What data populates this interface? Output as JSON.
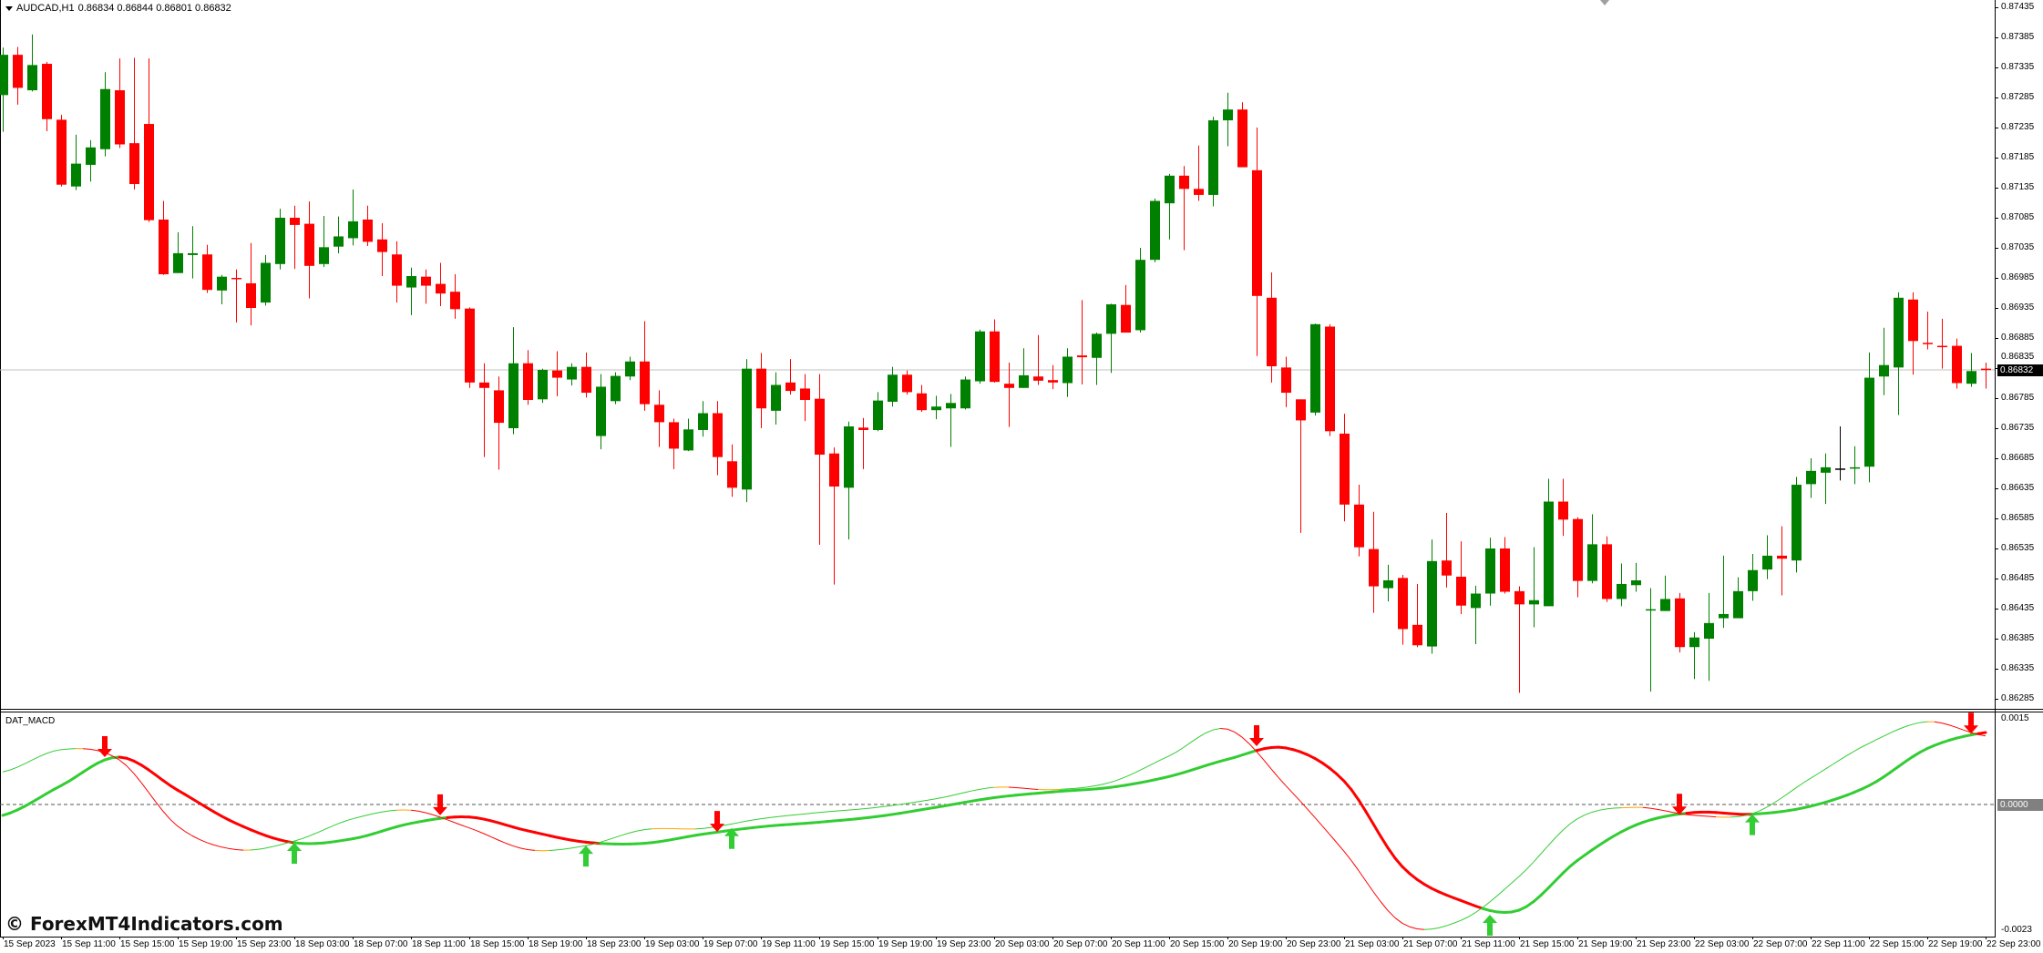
{
  "header": {
    "symbol": "AUDCAD,H1",
    "ohlc": "0.86834 0.86844 0.86801 0.86832"
  },
  "indicator": {
    "name": "DAT_MACD"
  },
  "watermark": "© ForexMT4Indicators.com",
  "colors": {
    "bull": "#008000",
    "bear": "#ff0000",
    "doji": "#000000",
    "macd_up": "#32cd32",
    "macd_down": "#ff0000",
    "macd_flat": "#ffa500",
    "arrow_up": "#32cd32",
    "arrow_down": "#ff0000",
    "price_line": "#c0c0c0"
  },
  "price_axis": {
    "labels": [
      "0.87435",
      "0.87385",
      "0.87335",
      "0.87285",
      "0.87235",
      "0.87185",
      "0.87135",
      "0.87085",
      "0.87035",
      "0.86985",
      "0.86935",
      "0.86885",
      "0.86835",
      "0.86785",
      "0.86735",
      "0.86685",
      "0.86635",
      "0.86585",
      "0.86535",
      "0.86485",
      "0.86435",
      "0.86385",
      "0.86335",
      "0.86285"
    ],
    "current": "0.86832"
  },
  "macd_axis": {
    "top": "0.0015",
    "zero": "0.0000",
    "bottom": "-0.0023"
  },
  "time_axis": [
    "15 Sep 2023",
    "15 Sep 11:00",
    "15 Sep 15:00",
    "15 Sep 19:00",
    "15 Sep 23:00",
    "18 Sep 03:00",
    "18 Sep 07:00",
    "18 Sep 11:00",
    "18 Sep 15:00",
    "18 Sep 19:00",
    "18 Sep 23:00",
    "19 Sep 03:00",
    "19 Sep 07:00",
    "19 Sep 11:00",
    "19 Sep 15:00",
    "19 Sep 19:00",
    "19 Sep 23:00",
    "20 Sep 03:00",
    "20 Sep 07:00",
    "20 Sep 11:00",
    "20 Sep 15:00",
    "20 Sep 19:00",
    "20 Sep 23:00",
    "21 Sep 03:00",
    "21 Sep 07:00",
    "21 Sep 11:00",
    "21 Sep 15:00",
    "21 Sep 19:00",
    "21 Sep 23:00",
    "22 Sep 03:00",
    "22 Sep 07:00",
    "22 Sep 11:00",
    "22 Sep 15:00",
    "22 Sep 19:00",
    "22 Sep 23:00"
  ],
  "chart_data": [
    {
      "type": "candlestick",
      "symbol": "AUDCAD",
      "timeframe": "H1",
      "ylim": [
        0.86285,
        0.87435
      ],
      "ohlc_order": [
        "open",
        "high",
        "low",
        "close"
      ],
      "candles": [
        [
          0.87289,
          0.87368,
          0.87228,
          0.87356
        ],
        [
          0.87356,
          0.87369,
          0.87273,
          0.87301
        ],
        [
          0.87297,
          0.8739,
          0.87295,
          0.87339
        ],
        [
          0.87341,
          0.87344,
          0.87229,
          0.87249
        ],
        [
          0.87248,
          0.87256,
          0.87137,
          0.8714
        ],
        [
          0.87137,
          0.87223,
          0.87131,
          0.87175
        ],
        [
          0.87173,
          0.87214,
          0.87145,
          0.87202
        ],
        [
          0.87199,
          0.87327,
          0.87187,
          0.87299
        ],
        [
          0.87297,
          0.8735,
          0.87201,
          0.87207
        ],
        [
          0.87209,
          0.87351,
          0.87132,
          0.87141
        ],
        [
          0.87241,
          0.8735,
          0.87078,
          0.87081
        ],
        [
          0.87082,
          0.87113,
          0.8699,
          0.86991
        ],
        [
          0.86993,
          0.87061,
          0.86993,
          0.87026
        ],
        [
          0.87023,
          0.87071,
          0.86984,
          0.87026
        ],
        [
          0.87024,
          0.8704,
          0.8696,
          0.86965
        ],
        [
          0.86964,
          0.8699,
          0.86941,
          0.86987
        ],
        [
          0.86985,
          0.86999,
          0.86911,
          0.86984
        ],
        [
          0.86976,
          0.87043,
          0.86906,
          0.86935
        ],
        [
          0.86944,
          0.87023,
          0.86939,
          0.8701
        ],
        [
          0.87008,
          0.871,
          0.86999,
          0.87085
        ],
        [
          0.87085,
          0.87105,
          0.87,
          0.87073
        ],
        [
          0.87075,
          0.87112,
          0.86951,
          0.87005
        ],
        [
          0.87008,
          0.87088,
          0.87003,
          0.87036
        ],
        [
          0.87037,
          0.87087,
          0.87026,
          0.87054
        ],
        [
          0.87051,
          0.87132,
          0.87039,
          0.87079
        ],
        [
          0.87082,
          0.87105,
          0.87038,
          0.87045
        ],
        [
          0.87049,
          0.87076,
          0.86988,
          0.87028
        ],
        [
          0.87024,
          0.87046,
          0.86944,
          0.86972
        ],
        [
          0.86969,
          0.87002,
          0.86923,
          0.86988
        ],
        [
          0.86987,
          0.86999,
          0.86942,
          0.86972
        ],
        [
          0.86975,
          0.8701,
          0.86938,
          0.86959
        ],
        [
          0.86962,
          0.86991,
          0.86917,
          0.86933
        ],
        [
          0.86934,
          0.86936,
          0.86802,
          0.86811
        ],
        [
          0.86811,
          0.86843,
          0.86687,
          0.86802
        ],
        [
          0.86798,
          0.86821,
          0.86666,
          0.86744
        ],
        [
          0.86735,
          0.86903,
          0.86725,
          0.86843
        ],
        [
          0.86843,
          0.86865,
          0.86774,
          0.86782
        ],
        [
          0.86783,
          0.86834,
          0.86777,
          0.86832
        ],
        [
          0.86831,
          0.86863,
          0.86788,
          0.86819
        ],
        [
          0.86816,
          0.86843,
          0.86806,
          0.86837
        ],
        [
          0.86837,
          0.86861,
          0.86786,
          0.86794
        ],
        [
          0.86722,
          0.86825,
          0.867,
          0.86804
        ],
        [
          0.8678,
          0.86828,
          0.86775,
          0.86822
        ],
        [
          0.86821,
          0.86854,
          0.86815,
          0.86846
        ],
        [
          0.86846,
          0.86913,
          0.86764,
          0.86775
        ],
        [
          0.86774,
          0.86798,
          0.86704,
          0.86745
        ],
        [
          0.86745,
          0.86751,
          0.86667,
          0.86701
        ],
        [
          0.86698,
          0.86751,
          0.86697,
          0.86733
        ],
        [
          0.86732,
          0.8678,
          0.86721,
          0.8676
        ],
        [
          0.8676,
          0.8678,
          0.86657,
          0.86687
        ],
        [
          0.8668,
          0.86708,
          0.86621,
          0.86636
        ],
        [
          0.86633,
          0.8685,
          0.86612,
          0.86834
        ],
        [
          0.86834,
          0.8686,
          0.86735,
          0.86768
        ],
        [
          0.86764,
          0.86828,
          0.86741,
          0.86807
        ],
        [
          0.86811,
          0.8685,
          0.86791,
          0.86797
        ],
        [
          0.86801,
          0.86825,
          0.86747,
          0.86782
        ],
        [
          0.86784,
          0.86825,
          0.86541,
          0.86691
        ],
        [
          0.86693,
          0.86703,
          0.86475,
          0.86638
        ],
        [
          0.86636,
          0.86746,
          0.8655,
          0.86738
        ],
        [
          0.86736,
          0.86752,
          0.86667,
          0.86732
        ],
        [
          0.86732,
          0.86795,
          0.8673,
          0.86781
        ],
        [
          0.86779,
          0.86837,
          0.86771,
          0.86824
        ],
        [
          0.86824,
          0.86831,
          0.86791,
          0.86795
        ],
        [
          0.86793,
          0.86807,
          0.86762,
          0.86765
        ],
        [
          0.86765,
          0.86789,
          0.8675,
          0.86771
        ],
        [
          0.86768,
          0.86792,
          0.86704,
          0.86777
        ],
        [
          0.86768,
          0.86821,
          0.86766,
          0.86816
        ],
        [
          0.86813,
          0.86899,
          0.86809,
          0.86896
        ],
        [
          0.86896,
          0.86916,
          0.86811,
          0.86812
        ],
        [
          0.86809,
          0.86844,
          0.86737,
          0.86802
        ],
        [
          0.86802,
          0.86868,
          0.86802,
          0.86823
        ],
        [
          0.86821,
          0.8689,
          0.86807,
          0.86814
        ],
        [
          0.86815,
          0.8684,
          0.868,
          0.86811
        ],
        [
          0.8681,
          0.86868,
          0.86787,
          0.86854
        ],
        [
          0.86856,
          0.86948,
          0.86808,
          0.86853
        ],
        [
          0.86852,
          0.86894,
          0.86807,
          0.86892
        ],
        [
          0.86892,
          0.86942,
          0.86827,
          0.86941
        ],
        [
          0.8694,
          0.86973,
          0.86894,
          0.86894
        ],
        [
          0.86898,
          0.87035,
          0.86894,
          0.87015
        ],
        [
          0.87015,
          0.87117,
          0.87011,
          0.87113
        ],
        [
          0.87109,
          0.87158,
          0.87049,
          0.87155
        ],
        [
          0.87155,
          0.87171,
          0.87031,
          0.87133
        ],
        [
          0.87133,
          0.87205,
          0.87113,
          0.87123
        ],
        [
          0.87123,
          0.87253,
          0.87104,
          0.87247
        ],
        [
          0.87247,
          0.87293,
          0.87204,
          0.87265
        ],
        [
          0.87265,
          0.87277,
          0.87169,
          0.87169
        ],
        [
          0.87164,
          0.87235,
          0.86855,
          0.86955
        ],
        [
          0.86952,
          0.86994,
          0.86811,
          0.86838
        ],
        [
          0.86836,
          0.86854,
          0.8677,
          0.86794
        ],
        [
          0.86783,
          0.86783,
          0.86561,
          0.86748
        ],
        [
          0.86761,
          0.86909,
          0.86756,
          0.86908
        ],
        [
          0.86904,
          0.86908,
          0.86722,
          0.8673
        ],
        [
          0.86726,
          0.86759,
          0.8658,
          0.86608
        ],
        [
          0.86608,
          0.86641,
          0.86522,
          0.86537
        ],
        [
          0.86534,
          0.86596,
          0.86428,
          0.86472
        ],
        [
          0.86469,
          0.86508,
          0.86447,
          0.86482
        ],
        [
          0.86486,
          0.86491,
          0.86375,
          0.86401
        ],
        [
          0.86408,
          0.86476,
          0.86371,
          0.86374
        ],
        [
          0.86372,
          0.8655,
          0.8636,
          0.86514
        ],
        [
          0.86515,
          0.86594,
          0.8647,
          0.8649
        ],
        [
          0.86488,
          0.86547,
          0.86426,
          0.8644
        ],
        [
          0.86436,
          0.86473,
          0.86376,
          0.8646
        ],
        [
          0.8646,
          0.86553,
          0.8644,
          0.86535
        ],
        [
          0.86535,
          0.86554,
          0.8646,
          0.86463
        ],
        [
          0.86464,
          0.86472,
          0.86295,
          0.86442
        ],
        [
          0.86442,
          0.86537,
          0.86404,
          0.86449
        ],
        [
          0.86439,
          0.86651,
          0.86439,
          0.86613
        ],
        [
          0.86613,
          0.86651,
          0.86556,
          0.86583
        ],
        [
          0.86584,
          0.86587,
          0.86454,
          0.86481
        ],
        [
          0.86481,
          0.86592,
          0.86477,
          0.86542
        ],
        [
          0.86542,
          0.86555,
          0.86446,
          0.86451
        ],
        [
          0.86451,
          0.8651,
          0.86439,
          0.86476
        ],
        [
          0.86474,
          0.86511,
          0.86463,
          0.86482
        ],
        [
          0.86432,
          0.86469,
          0.86297,
          0.86434
        ],
        [
          0.86431,
          0.8649,
          0.86431,
          0.86451
        ],
        [
          0.86452,
          0.86461,
          0.86362,
          0.86371
        ],
        [
          0.86371,
          0.86396,
          0.86318,
          0.86387
        ],
        [
          0.86385,
          0.86461,
          0.86315,
          0.86411
        ],
        [
          0.86419,
          0.86523,
          0.86403,
          0.86426
        ],
        [
          0.86419,
          0.86487,
          0.86419,
          0.86464
        ],
        [
          0.86464,
          0.86526,
          0.86448,
          0.86499
        ],
        [
          0.865,
          0.86557,
          0.86484,
          0.86523
        ],
        [
          0.86523,
          0.86572,
          0.86457,
          0.86518
        ],
        [
          0.86515,
          0.86654,
          0.86495,
          0.86641
        ],
        [
          0.86642,
          0.86685,
          0.86619,
          0.86664
        ],
        [
          0.86661,
          0.86693,
          0.86609,
          0.8667
        ],
        [
          0.86668,
          0.86738,
          0.86648,
          0.86668
        ],
        [
          0.86668,
          0.86705,
          0.86642,
          0.8667
        ],
        [
          0.86671,
          0.86861,
          0.86645,
          0.86819
        ],
        [
          0.86821,
          0.86902,
          0.8679,
          0.8684
        ],
        [
          0.86836,
          0.86961,
          0.86757,
          0.86952
        ],
        [
          0.86949,
          0.86961,
          0.86824,
          0.8688
        ],
        [
          0.86877,
          0.86929,
          0.86866,
          0.86875
        ],
        [
          0.86872,
          0.86917,
          0.86834,
          0.86871
        ],
        [
          0.86872,
          0.86884,
          0.86801,
          0.8681
        ],
        [
          0.86809,
          0.8686,
          0.86804,
          0.8683
        ],
        [
          0.86834,
          0.86844,
          0.86801,
          0.86832
        ]
      ],
      "current_price": 0.86832
    },
    {
      "type": "line",
      "title": "DAT_MACD",
      "ylim": [
        -0.0023,
        0.0015
      ],
      "zero_line": true,
      "x": [
        "15 Sep 2023",
        "15 Sep 11:00",
        "15 Sep 15:00",
        "15 Sep 19:00",
        "15 Sep 23:00",
        "18 Sep 03:00",
        "18 Sep 07:00",
        "18 Sep 11:00",
        "18 Sep 15:00",
        "18 Sep 19:00",
        "18 Sep 23:00",
        "19 Sep 03:00",
        "19 Sep 07:00",
        "19 Sep 11:00",
        "19 Sep 15:00",
        "19 Sep 19:00",
        "19 Sep 23:00",
        "20 Sep 03:00",
        "20 Sep 07:00",
        "20 Sep 11:00",
        "20 Sep 15:00",
        "20 Sep 19:00",
        "20 Sep 23:00",
        "21 Sep 03:00",
        "21 Sep 07:00",
        "21 Sep 11:00",
        "21 Sep 15:00",
        "21 Sep 19:00",
        "21 Sep 23:00",
        "22 Sep 03:00",
        "22 Sep 07:00",
        "22 Sep 11:00",
        "22 Sep 15:00",
        "22 Sep 19:00",
        "22 Sep 23:00"
      ],
      "series": [
        {
          "style": "thin",
          "values": [
            0.00057,
            0.00096,
            0.00078,
            -0.00038,
            -0.00079,
            -0.00064,
            -0.00025,
            -0.0001,
            -0.00041,
            -0.00079,
            -0.00072,
            -0.00044,
            -0.00042,
            -0.00025,
            -0.00014,
            -5e-05,
            0.0001,
            0.0003,
            0.00026,
            0.00039,
            0.00085,
            0.00132,
            0.00033,
            -0.00082,
            -0.00208,
            -0.00203,
            -0.00126,
            -0.00025,
            -5e-05,
            -0.00019,
            -0.00016,
            0.00046,
            0.00107,
            0.00145,
            0.0012
          ]
        },
        {
          "style": "thick",
          "values": [
            -0.00019,
            0.00033,
            0.00083,
            0.00025,
            -0.00033,
            -0.00067,
            -0.0006,
            -0.00033,
            -0.00022,
            -0.00046,
            -0.00066,
            -0.00068,
            -0.00052,
            -0.00039,
            -0.00031,
            -0.00021,
            -5e-05,
            0.00012,
            0.00022,
            0.0003,
            0.00049,
            0.00079,
            0.00099,
            0.00041,
            -0.00109,
            -0.00168,
            -0.00185,
            -0.00098,
            -0.00036,
            -0.00014,
            -0.00017,
            -3e-05,
            0.00033,
            0.00098,
            0.00126
          ]
        }
      ],
      "signals": [
        {
          "type": "sell",
          "time": "15 Sep 14:00",
          "value": 0.00083
        },
        {
          "type": "buy",
          "time": "18 Sep 03:00",
          "value": -0.00067
        },
        {
          "type": "sell",
          "time": "18 Sep 13:00",
          "value": -0.00019
        },
        {
          "type": "buy",
          "time": "18 Sep 23:00",
          "value": -0.00072
        },
        {
          "type": "sell",
          "time": "19 Sep 08:00",
          "value": -0.00048
        },
        {
          "type": "buy",
          "time": "19 Sep 09:00",
          "value": -0.00041
        },
        {
          "type": "sell",
          "time": "20 Sep 21:00",
          "value": 0.00102
        },
        {
          "type": "buy",
          "time": "21 Sep 13:00",
          "value": -0.00193
        },
        {
          "type": "sell",
          "time": "22 Sep 02:00",
          "value": -0.00018
        },
        {
          "type": "buy",
          "time": "22 Sep 07:00",
          "value": -0.00017
        },
        {
          "type": "sell",
          "time": "22 Sep 22:00",
          "value": 0.00124
        }
      ]
    }
  ]
}
